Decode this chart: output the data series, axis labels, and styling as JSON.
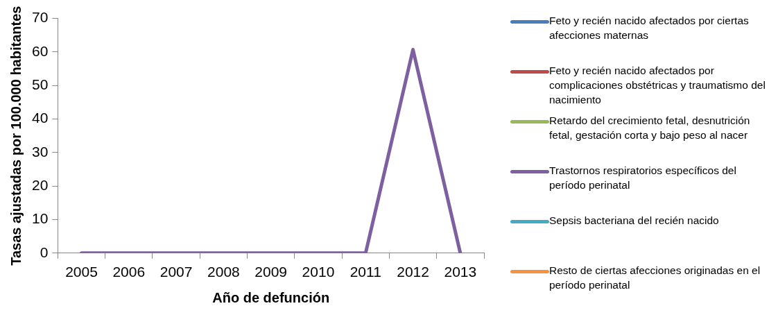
{
  "chart_data": {
    "type": "line",
    "xlabel": "Año de defunción",
    "ylabel": "Tasas ajustadas por 100.000 habitantes",
    "categories": [
      "2005",
      "2006",
      "2007",
      "2008",
      "2009",
      "2010",
      "2011",
      "2012",
      "2013"
    ],
    "series": [
      {
        "name": "Feto y recién nacido afectados por ciertas afecciones maternas",
        "color": "#4a7ebb",
        "values": [
          null,
          null,
          null,
          null,
          null,
          null,
          null,
          null,
          null
        ]
      },
      {
        "name": "Feto y recién nacido afectados por complicaciones obstétricas y traumatismo del nacimiento",
        "color": "#be4b48",
        "values": [
          null,
          null,
          null,
          null,
          null,
          null,
          null,
          null,
          null
        ]
      },
      {
        "name": "Retardo del crecimiento fetal, desnutrición fetal, gestación corta y bajo peso al nacer",
        "color": "#98b954",
        "values": [
          null,
          null,
          null,
          null,
          null,
          null,
          null,
          null,
          null
        ]
      },
      {
        "name": "Trastornos respiratorios específicos del período perinatal",
        "color": "#7d60a0",
        "values": [
          0,
          0,
          0,
          0,
          0,
          0,
          0,
          60.7,
          0
        ]
      },
      {
        "name": "Sepsis bacteriana del recién nacido",
        "color": "#46aac5",
        "values": [
          null,
          null,
          null,
          null,
          null,
          null,
          null,
          null,
          null
        ]
      },
      {
        "name": "Resto de ciertas afecciones originadas en el período perinatal",
        "color": "#f69240",
        "values": [
          null,
          null,
          null,
          null,
          null,
          null,
          null,
          null,
          null
        ]
      }
    ],
    "ylim": [
      0,
      70
    ],
    "yticks": [
      0,
      10,
      20,
      30,
      40,
      50,
      60,
      70
    ],
    "grid": false,
    "legend": "right",
    "marker": "none",
    "line_style": "solid"
  }
}
